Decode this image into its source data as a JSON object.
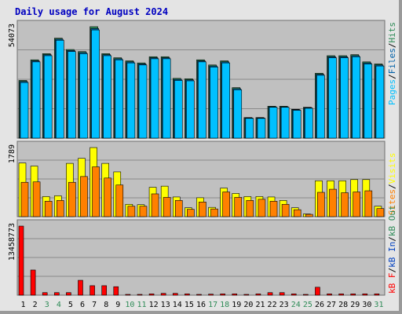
{
  "colors": {
    "background": "#e4e4e4",
    "panel": "#c0c0c0",
    "pages": "#00c0ff",
    "files": "#0060a8",
    "hits": "#2e8b57",
    "visits": "#ffff00",
    "sites": "#ff8000",
    "kbytes": "#ff0000",
    "kbin": "#0040c0",
    "kbout": "#2e8b57",
    "title": "#0000c0",
    "weekend": "#2e8b57"
  },
  "chart_data": {
    "type": "bar",
    "title": "Daily usage for August 2024",
    "categories": [
      "1",
      "2",
      "3",
      "4",
      "5",
      "6",
      "7",
      "8",
      "9",
      "10",
      "11",
      "12",
      "13",
      "14",
      "15",
      "16",
      "17",
      "18",
      "19",
      "20",
      "21",
      "22",
      "23",
      "24",
      "25",
      "26",
      "27",
      "28",
      "29",
      "30",
      "31"
    ],
    "weekend_days": [
      "3",
      "4",
      "10",
      "11",
      "17",
      "18",
      "24",
      "25",
      "31"
    ],
    "panels": [
      {
        "name": "hits-files-pages",
        "ymax_label": "54073",
        "ymax": 54073,
        "legend": [
          {
            "text": "Pages",
            "color": "#00c0ff"
          },
          {
            "text": "/",
            "color": "#000000"
          },
          {
            "text": "Files",
            "color": "#0060a8"
          },
          {
            "text": "/",
            "color": "#000000"
          },
          {
            "text": "Hits",
            "color": "#2e8b57"
          }
        ],
        "series": [
          {
            "name": "Hits",
            "color": "#2e8b57",
            "values": [
              28000,
              38000,
              41000,
              48500,
              43000,
              42000,
              54073,
              41000,
              39000,
              37500,
              36500,
              39500,
              39500,
              29000,
              28800,
              38000,
              35500,
              37500,
              24500,
              10000,
              10000,
              15500,
              15500,
              14000,
              15000,
              31500,
              40000,
              40000,
              40500,
              37000,
              36000
            ]
          },
          {
            "name": "Files",
            "color": "#0060a8",
            "values": [
              27500,
              37500,
              40500,
              48000,
              42500,
              41500,
              53200,
              40500,
              38500,
              37000,
              36000,
              39000,
              39000,
              28500,
              28300,
              37500,
              35000,
              37000,
              24000,
              9800,
              9800,
              15200,
              15200,
              13800,
              14800,
              31000,
              39500,
              39500,
              40000,
              36500,
              35500
            ]
          },
          {
            "name": "Pages",
            "color": "#00c0ff",
            "values": [
              27000,
              37000,
              40000,
              47500,
              42000,
              41000,
              52500,
              40000,
              38000,
              36500,
              35500,
              38500,
              38500,
              28000,
              27800,
              37000,
              34500,
              36500,
              23500,
              9600,
              9600,
              15000,
              15000,
              13500,
              14500,
              30500,
              39000,
              39000,
              39500,
              36000,
              35000
            ]
          }
        ]
      },
      {
        "name": "visits-sites",
        "ymax_label": "1789",
        "ymax": 1789,
        "legend": [
          {
            "text": "Sites",
            "color": "#ff8000"
          },
          {
            "text": "/",
            "color": "#000000"
          },
          {
            "text": "Visits",
            "color": "#ffff00"
          }
        ],
        "series": [
          {
            "name": "Visits",
            "color": "#ffff00",
            "values": [
              1390,
              1310,
              520,
              540,
              1380,
              1510,
              1789,
              1380,
              1160,
              320,
              310,
              760,
              790,
              510,
              230,
              490,
              240,
              740,
              600,
              520,
              520,
              510,
              420,
              230,
              70,
              930,
              930,
              930,
              960,
              960,
              270
            ]
          },
          {
            "name": "Sites",
            "color": "#ff8000",
            "values": [
              890,
              900,
              400,
              420,
              890,
              1040,
              1290,
              1000,
              820,
              270,
              270,
              590,
              500,
              420,
              190,
              380,
              200,
              640,
              500,
              420,
              450,
              400,
              320,
              180,
              60,
              630,
              710,
              620,
              640,
              670,
              210
            ]
          }
        ]
      },
      {
        "name": "kbytes",
        "ymax_label": "13458773",
        "ymax": 13458773,
        "legend": [
          {
            "text": "kB F",
            "color": "#ff0000"
          },
          {
            "text": "/",
            "color": "#000000"
          },
          {
            "text": "kB In",
            "color": "#0040c0"
          },
          {
            "text": "/",
            "color": "#000000"
          },
          {
            "text": "kB Out",
            "color": "#2e8b57"
          }
        ],
        "series": [
          {
            "name": "kB F",
            "color": "#ff0000",
            "values": [
              13458773,
              4900000,
              500000,
              500000,
              500000,
              2900000,
              1850000,
              1850000,
              1650000,
              150000,
              150000,
              250000,
              350000,
              350000,
              250000,
              150000,
              200000,
              250000,
              250000,
              150000,
              250000,
              500000,
              500000,
              250000,
              150000,
              1550000,
              250000,
              250000,
              250000,
              250000,
              250000
            ]
          }
        ]
      }
    ]
  }
}
